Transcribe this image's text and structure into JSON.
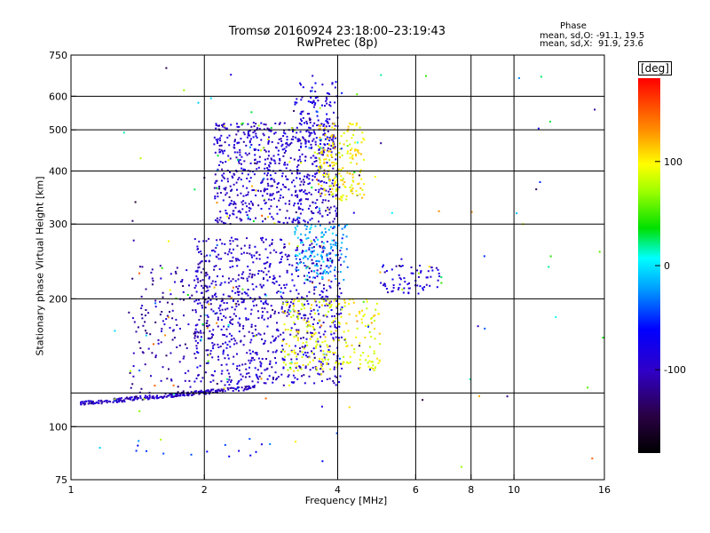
{
  "header": {
    "title": "Tromsø 20160924 23:18:00–23:19:43",
    "subtitle": "RwPretec (8p)",
    "phase_label": "Phase",
    "phase_o": "mean, sd,O: -91.1, 19.5",
    "phase_x": "mean, sd,X:  91.9, 23.6"
  },
  "colorbar": {
    "unit_label": "[deg]",
    "ticks": [
      "100",
      "0",
      "-100"
    ],
    "range": [
      -180,
      180
    ]
  },
  "colors": {
    "grid": "#000000",
    "background": "#ffffff"
  },
  "chart_data": {
    "type": "scatter",
    "title": "Tromsø 20160924 23:18:00–23:19:43",
    "subtitle": "RwPretec (8p)",
    "xlabel": "Frequency [MHz]",
    "ylabel": "Stationary phase Virtual Height [km]",
    "x_scale": "log2",
    "y_scale": "log",
    "xlim": [
      1,
      16
    ],
    "ylim": [
      75,
      750
    ],
    "x_ticks": [
      {
        "value": 1,
        "label": "1"
      },
      {
        "value": 2,
        "label": "2"
      },
      {
        "value": 4,
        "label": "4"
      },
      {
        "value": 6,
        "label": "6"
      },
      {
        "value": 8,
        "label": "8"
      },
      {
        "value": 10,
        "label": "10"
      },
      {
        "value": 16,
        "label": "16"
      }
    ],
    "y_ticks": [
      {
        "value": 75,
        "label": "75"
      },
      {
        "value": 100,
        "label": "100"
      },
      {
        "value": 200,
        "label": "200"
      },
      {
        "value": 300,
        "label": "300"
      },
      {
        "value": 400,
        "label": "400"
      },
      {
        "value": 500,
        "label": "500"
      },
      {
        "value": 600,
        "label": "600"
      },
      {
        "value": 750,
        "label": "750"
      }
    ],
    "x_grid": [
      2,
      4,
      6,
      8,
      10
    ],
    "y_grid": [
      100,
      120,
      200,
      300,
      400,
      500,
      600
    ],
    "grid": true,
    "color_by": "phase [deg]",
    "clusters": [
      {
        "name": "E-layer trace",
        "x": [
          1.05,
          2.6
        ],
        "y": [
          112,
          125
        ],
        "phase": -100,
        "n": 260,
        "kind": "band"
      },
      {
        "name": "F lower O-trace",
        "x": [
          1.9,
          4.1
        ],
        "y": [
          125,
          280
        ],
        "phase": -95,
        "n": 900,
        "kind": "box"
      },
      {
        "name": "F lower O-trace rising edge",
        "x": [
          1.35,
          2.1
        ],
        "y": [
          120,
          240
        ],
        "phase": -110,
        "n": 160,
        "kind": "box"
      },
      {
        "name": "F upper O-trace",
        "x": [
          2.1,
          4.0
        ],
        "y": [
          300,
          520
        ],
        "phase": -95,
        "n": 700,
        "kind": "box"
      },
      {
        "name": "F upper tail",
        "x": [
          3.2,
          4.0
        ],
        "y": [
          450,
          650
        ],
        "phase": -85,
        "n": 120,
        "kind": "box"
      },
      {
        "name": "X-trace lower",
        "x": [
          3.0,
          5.0
        ],
        "y": [
          135,
          200
        ],
        "phase": 95,
        "n": 260,
        "kind": "box"
      },
      {
        "name": "X-trace upper",
        "x": [
          3.6,
          4.6
        ],
        "y": [
          340,
          520
        ],
        "phase": 100,
        "n": 200,
        "kind": "box"
      },
      {
        "name": "Mid-height patch",
        "x": [
          3.2,
          4.2
        ],
        "y": [
          220,
          300
        ],
        "phase": -20,
        "n": 140,
        "kind": "box"
      },
      {
        "name": "Oblique echoes",
        "x": [
          5.0,
          6.8
        ],
        "y": [
          205,
          240
        ],
        "phase": -90,
        "n": 70,
        "kind": "box"
      },
      {
        "name": "Low scatter",
        "x": [
          1.4,
          2.7
        ],
        "y": [
          85,
          95
        ],
        "phase": -60,
        "n": 14,
        "kind": "box"
      },
      {
        "name": "Scattered noise",
        "x": [
          1.0,
          16.0
        ],
        "y": [
          80,
          700
        ],
        "phase": 0,
        "n": 90,
        "kind": "noise"
      }
    ]
  }
}
